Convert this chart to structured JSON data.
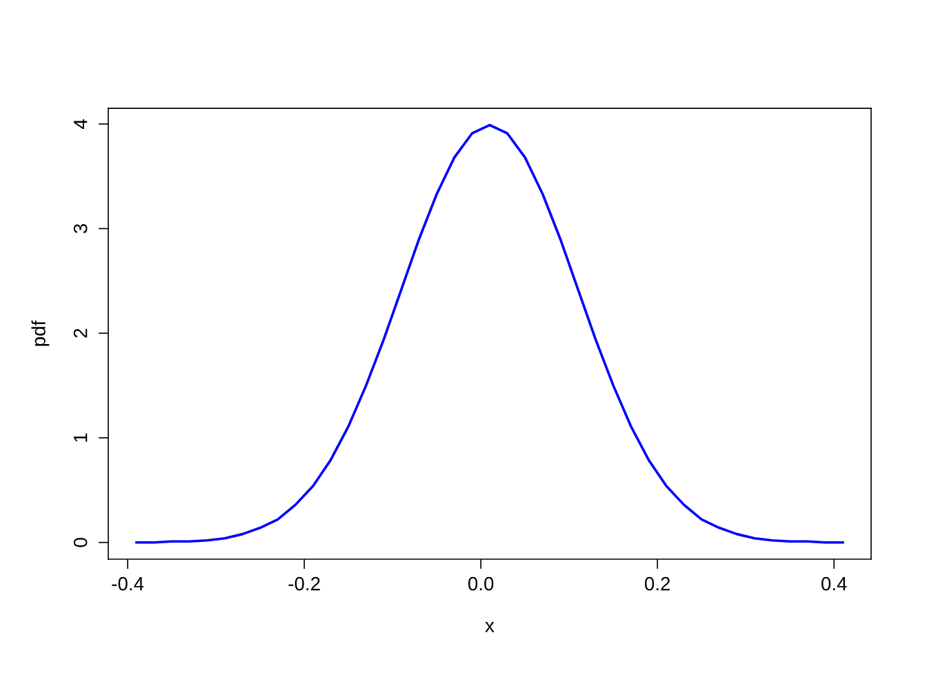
{
  "chart_data": {
    "type": "line",
    "xlabel": "x",
    "ylabel": "pdf",
    "x": [
      -0.39,
      -0.37,
      -0.35,
      -0.33,
      -0.31,
      -0.29,
      -0.27,
      -0.25,
      -0.23,
      -0.21,
      -0.19,
      -0.17,
      -0.15,
      -0.13,
      -0.11,
      -0.09,
      -0.07,
      -0.05,
      -0.03,
      -0.01,
      0.01,
      0.03,
      0.05,
      0.07,
      0.09,
      0.11,
      0.13,
      0.15,
      0.17,
      0.19,
      0.21,
      0.23,
      0.25,
      0.27,
      0.29,
      0.31,
      0.33,
      0.35,
      0.37,
      0.39,
      0.41
    ],
    "series": [
      {
        "color": "#0000ff",
        "values": [
          0.0,
          0.0,
          0.01,
          0.01,
          0.02,
          0.04,
          0.08,
          0.14,
          0.22,
          0.36,
          0.54,
          0.79,
          1.11,
          1.5,
          1.94,
          2.42,
          2.9,
          3.33,
          3.68,
          3.91,
          3.99,
          3.91,
          3.68,
          3.33,
          2.9,
          2.42,
          1.94,
          1.5,
          1.11,
          0.79,
          0.54,
          0.36,
          0.22,
          0.14,
          0.08,
          0.04,
          0.02,
          0.01,
          0.01,
          0.0,
          0.0
        ]
      }
    ],
    "xlim": [
      -0.422,
      0.442
    ],
    "ylim": [
      -0.16,
      4.15
    ],
    "xticks": [
      -0.4,
      -0.2,
      {
        "value": 0,
        "label": "0.0"
      },
      0.2,
      0.4
    ],
    "yticks": [
      0,
      1,
      2,
      3,
      4
    ],
    "grid": false,
    "marker": "none",
    "line_style": "solid"
  }
}
